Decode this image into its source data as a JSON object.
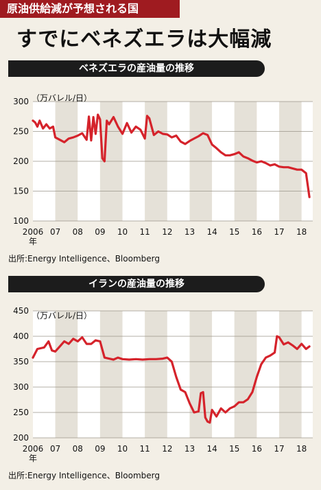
{
  "tag": "原油供給減が予想される国",
  "headline": "すでにベネズエラは大幅減",
  "charts": [
    {
      "title": "ベネズエラの産油量の推移",
      "unit": "（万バレル/日）",
      "source": "出所:Energy Intelligence、Bloomberg",
      "x_first_label": "2006",
      "x_first_suffix": "年",
      "x_labels": [
        "07",
        "08",
        "09",
        "10",
        "11",
        "12",
        "13",
        "14",
        "15",
        "16",
        "17",
        "18"
      ],
      "y_ticks": [
        100,
        150,
        200,
        250,
        300
      ],
      "ylim": [
        100,
        300
      ]
    },
    {
      "title": "イランの産油量の推移",
      "unit": "（万バレル/日）",
      "source": "出所:Energy Intelligence、Bloomberg",
      "x_first_label": "2006",
      "x_first_suffix": "年",
      "x_labels": [
        "07",
        "08",
        "09",
        "10",
        "11",
        "12",
        "13",
        "14",
        "15",
        "16",
        "17",
        "18"
      ],
      "y_ticks": [
        200,
        250,
        300,
        350,
        400,
        450
      ],
      "ylim": [
        200,
        450
      ]
    }
  ],
  "chart_data": [
    {
      "type": "line",
      "title": "ベネズエラの産油量の推移",
      "ylabel": "（万バレル/日）",
      "x_range": [
        "2006-01",
        "2018-06"
      ],
      "ylim": [
        100,
        300
      ],
      "grid": true,
      "series": [
        {
          "color": "#d5232b",
          "x": [
            2006.0,
            2006.1,
            2006.2,
            2006.3,
            2006.45,
            2006.6,
            2006.75,
            2006.9,
            2007.0,
            2007.2,
            2007.4,
            2007.6,
            2007.8,
            2008.0,
            2008.2,
            2008.4,
            2008.5,
            2008.6,
            2008.7,
            2008.8,
            2008.9,
            2009.0,
            2009.1,
            2009.2,
            2009.3,
            2009.4,
            2009.6,
            2009.8,
            2010.0,
            2010.2,
            2010.4,
            2010.6,
            2010.8,
            2011.0,
            2011.1,
            2011.2,
            2011.4,
            2011.6,
            2011.8,
            2012.0,
            2012.2,
            2012.4,
            2012.6,
            2012.8,
            2013.0,
            2013.2,
            2013.4,
            2013.6,
            2013.8,
            2014.0,
            2014.2,
            2014.4,
            2014.6,
            2014.8,
            2015.0,
            2015.2,
            2015.4,
            2015.6,
            2015.8,
            2016.0,
            2016.2,
            2016.4,
            2016.6,
            2016.8,
            2017.0,
            2017.2,
            2017.4,
            2017.6,
            2017.8,
            2018.0,
            2018.2,
            2018.35
          ],
          "y": [
            268,
            265,
            258,
            268,
            255,
            262,
            255,
            258,
            240,
            236,
            232,
            238,
            240,
            243,
            247,
            236,
            275,
            235,
            274,
            246,
            278,
            270,
            205,
            200,
            268,
            262,
            274,
            258,
            246,
            264,
            248,
            258,
            253,
            238,
            276,
            272,
            244,
            250,
            246,
            245,
            240,
            243,
            233,
            229,
            234,
            238,
            242,
            247,
            244,
            228,
            222,
            215,
            210,
            210,
            212,
            215,
            208,
            205,
            201,
            198,
            200,
            197,
            193,
            195,
            191,
            190,
            190,
            188,
            186,
            186,
            180,
            140
          ]
        }
      ]
    },
    {
      "type": "line",
      "title": "イランの産油量の推移",
      "ylabel": "（万バレル/日）",
      "x_range": [
        "2006-01",
        "2018-06"
      ],
      "ylim": [
        200,
        450
      ],
      "grid": true,
      "series": [
        {
          "color": "#d5232b",
          "x": [
            2006.0,
            2006.2,
            2006.5,
            2006.7,
            2006.85,
            2007.0,
            2007.2,
            2007.4,
            2007.6,
            2007.8,
            2008.0,
            2008.2,
            2008.4,
            2008.6,
            2008.8,
            2009.0,
            2009.2,
            2009.4,
            2009.6,
            2009.8,
            2010.0,
            2010.3,
            2010.6,
            2010.9,
            2011.2,
            2011.5,
            2011.8,
            2012.0,
            2012.2,
            2012.4,
            2012.6,
            2012.8,
            2013.0,
            2013.2,
            2013.4,
            2013.5,
            2013.6,
            2013.7,
            2013.8,
            2013.9,
            2014.0,
            2014.2,
            2014.4,
            2014.6,
            2014.8,
            2015.0,
            2015.2,
            2015.4,
            2015.6,
            2015.8,
            2016.0,
            2016.2,
            2016.4,
            2016.6,
            2016.8,
            2016.9,
            2017.0,
            2017.2,
            2017.4,
            2017.6,
            2017.8,
            2018.0,
            2018.2,
            2018.35
          ],
          "y": [
            358,
            375,
            378,
            390,
            372,
            370,
            380,
            390,
            385,
            395,
            390,
            398,
            385,
            385,
            392,
            390,
            358,
            356,
            354,
            358,
            355,
            354,
            355,
            354,
            355,
            355,
            356,
            358,
            350,
            320,
            295,
            290,
            268,
            250,
            252,
            288,
            290,
            240,
            232,
            230,
            255,
            242,
            258,
            250,
            258,
            262,
            270,
            270,
            276,
            290,
            320,
            345,
            358,
            362,
            368,
            400,
            398,
            384,
            388,
            382,
            375,
            385,
            375,
            380
          ]
        }
      ]
    }
  ]
}
